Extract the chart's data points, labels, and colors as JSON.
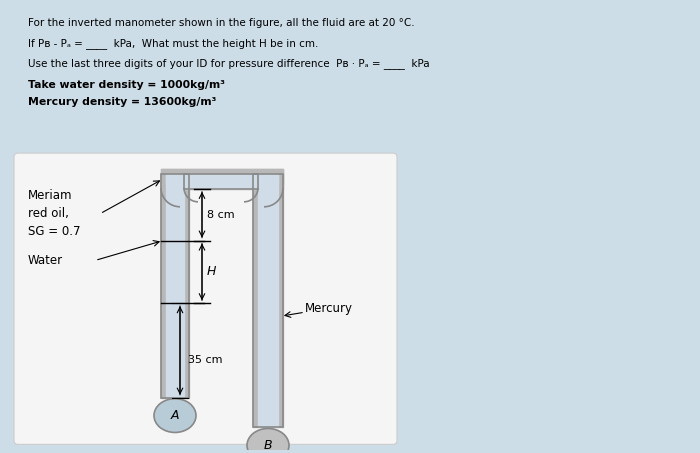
{
  "bg_color": "#ccdde8",
  "box_bg": "#f0f0f0",
  "text_lines": [
    "For the inverted manometer shown in the figure, all the fluid are at 20 °C.",
    "If Pʙ - Pₐ = ____  kPa,  What must the height H be in cm.",
    "Use the last three digits of your ID for pressure difference  Pʙ · Pₐ = ____  kPa",
    "Take water density = 1000kg/m³",
    "Mercury density = 13600kg/m³"
  ],
  "text_bold": [
    false,
    false,
    false,
    true,
    true
  ],
  "meriam_label": "Meriam\nred oil,\nSG = 0.7",
  "water_label": "Water",
  "mercury_label": "Mercury",
  "dim_8cm": "8 cm",
  "dim_H": "H",
  "dim_35cm": "35 cm",
  "label_A": "A",
  "label_B": "B",
  "pipe_gray": "#b8b8b8",
  "pipe_fill": "#d0dce8",
  "bulb_A_fill": "#b8ccd8",
  "bulb_B_fill": "#c0c0c0",
  "pipe_edge": "#888888"
}
